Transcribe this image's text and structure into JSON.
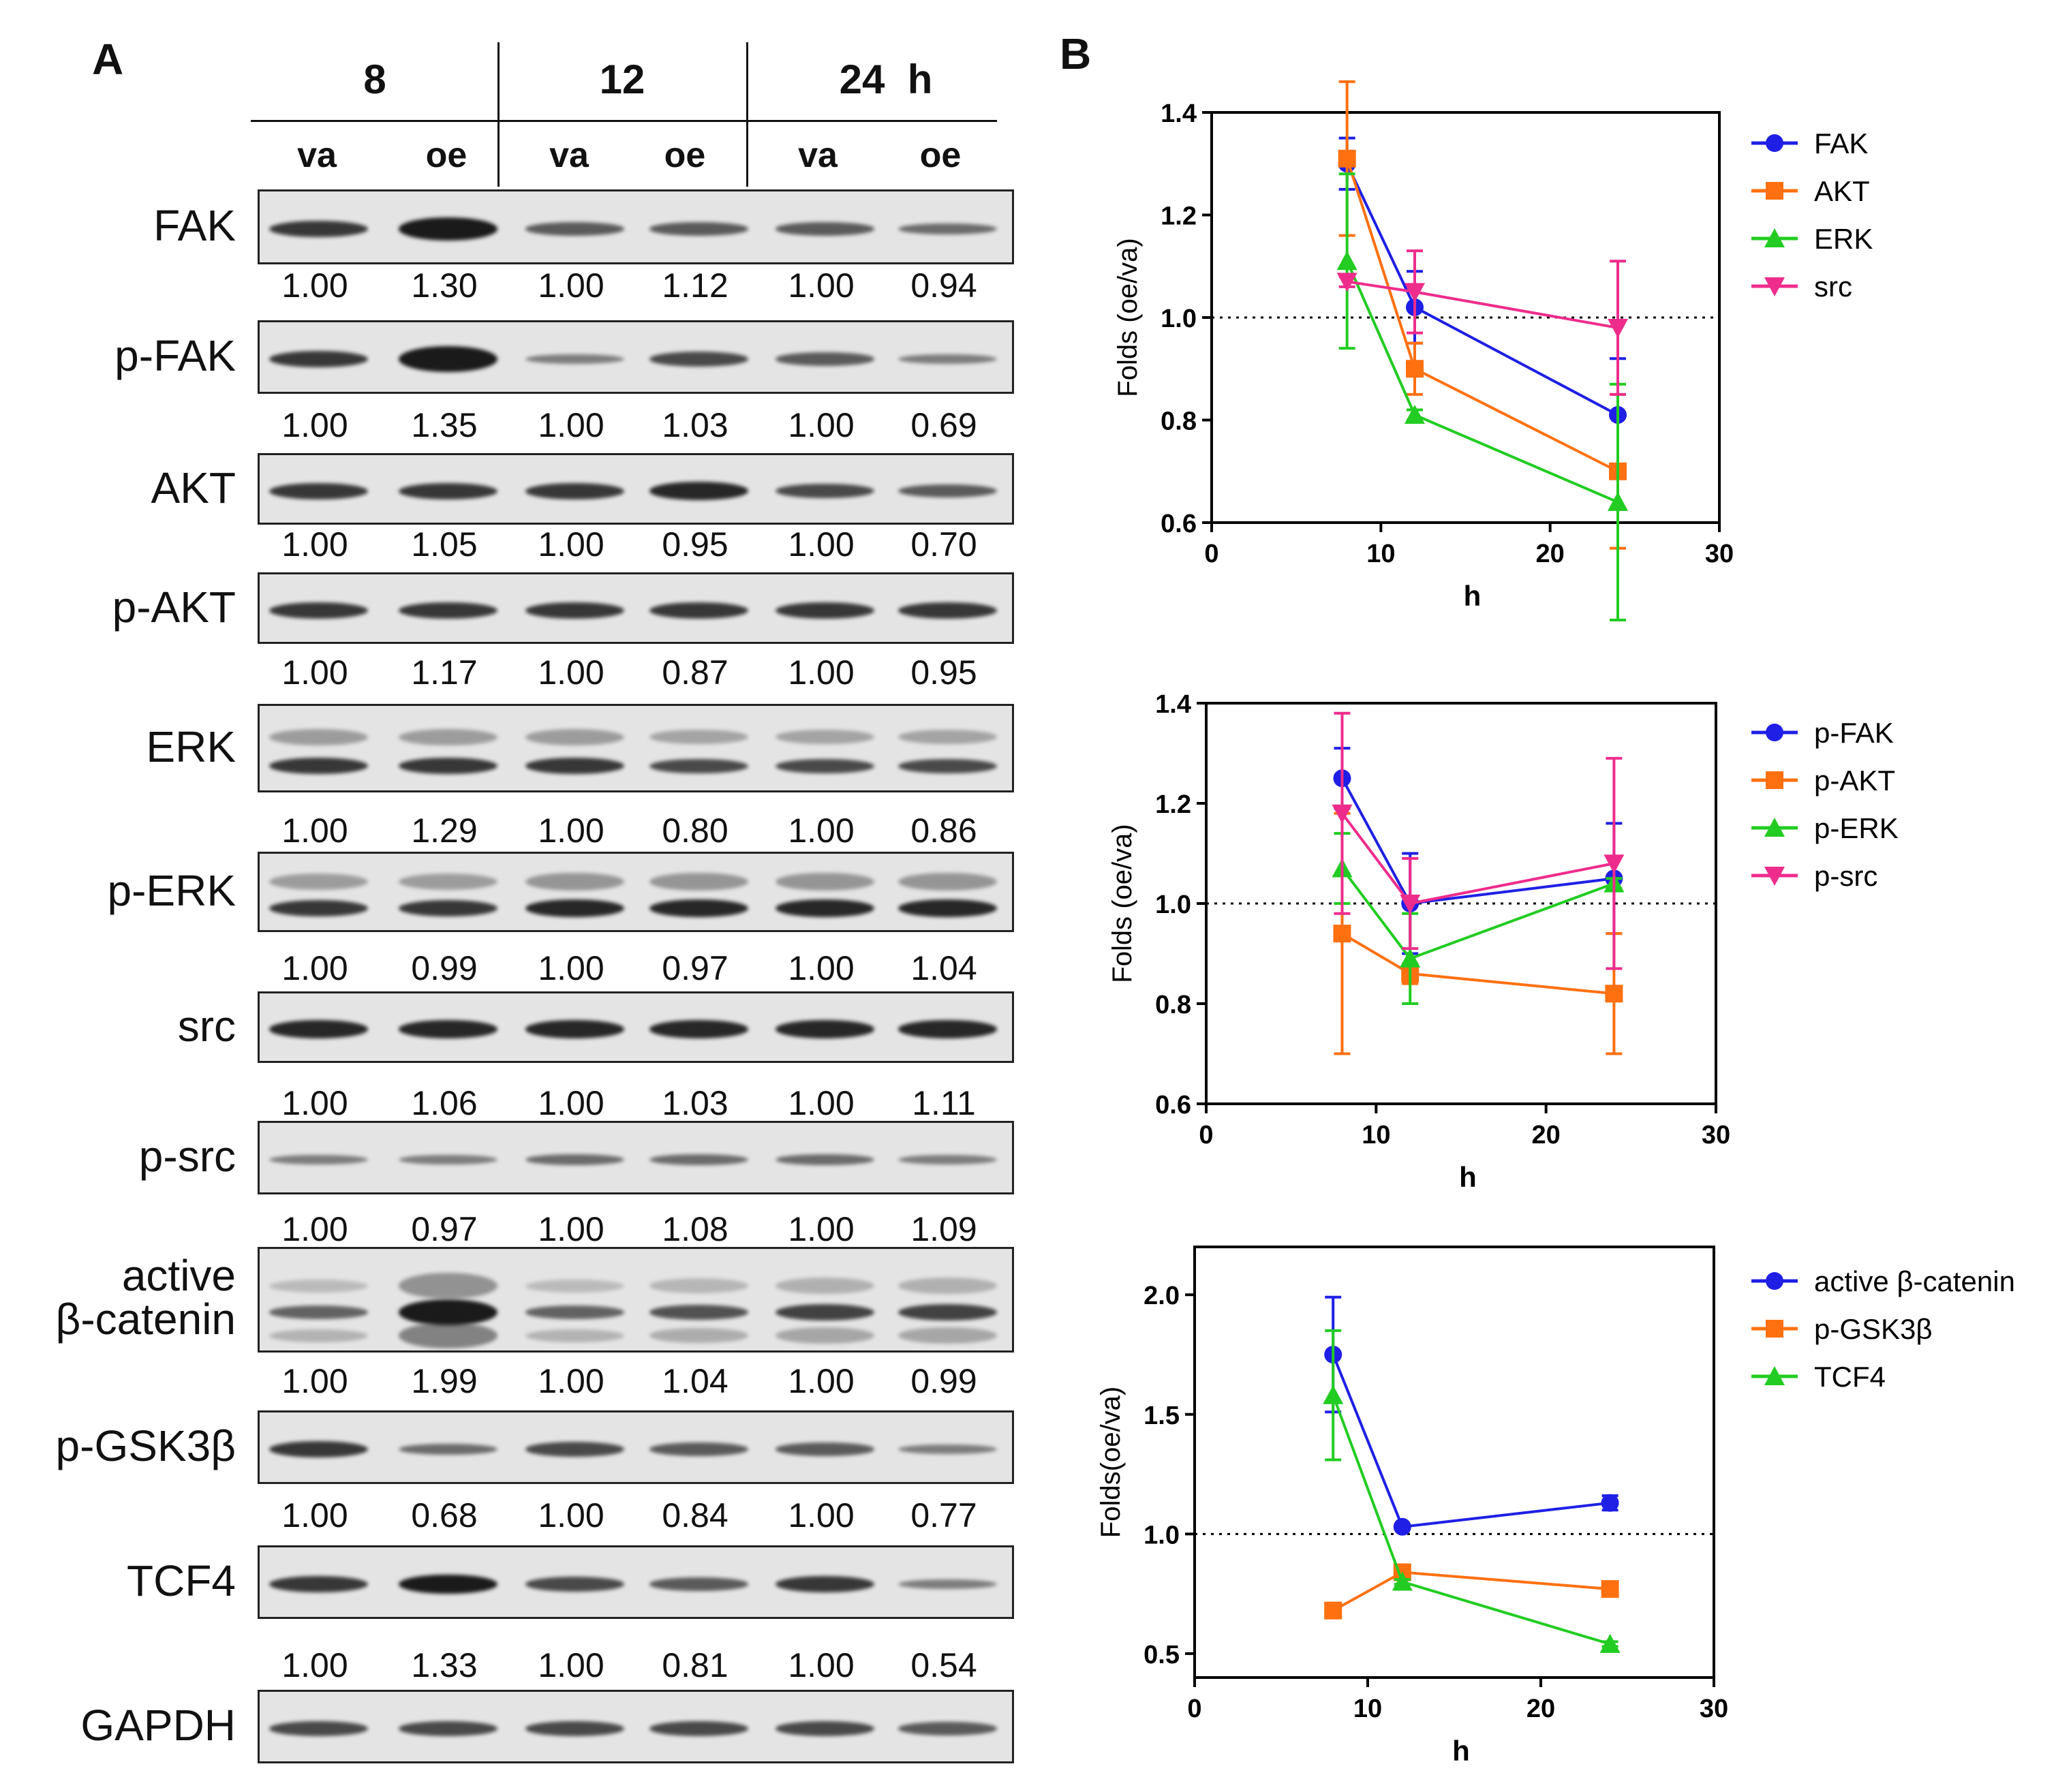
{
  "panel_a": {
    "letter": "A",
    "time_labels": [
      "8",
      "12",
      "24  h"
    ],
    "lane_labels": [
      "va",
      "oe",
      "va",
      "oe",
      "va",
      "oe"
    ],
    "blots": [
      {
        "protein": "FAK",
        "ratios": [
          "1.00",
          "1.30",
          "1.00",
          "1.12",
          "1.00",
          "0.94"
        ]
      },
      {
        "protein": "p-FAK",
        "ratios": [
          "1.00",
          "1.35",
          "1.00",
          "1.03",
          "1.00",
          "0.69"
        ]
      },
      {
        "protein": "AKT",
        "ratios": [
          "1.00",
          "1.05",
          "1.00",
          "0.95",
          "1.00",
          "0.70"
        ]
      },
      {
        "protein": "p-AKT",
        "ratios": [
          "1.00",
          "1.17",
          "1.00",
          "0.87",
          "1.00",
          "0.95"
        ]
      },
      {
        "protein": "ERK",
        "ratios": [
          "1.00",
          "1.29",
          "1.00",
          "0.80",
          "1.00",
          "0.86"
        ]
      },
      {
        "protein": "p-ERK",
        "ratios": [
          "1.00",
          "0.99",
          "1.00",
          "0.97",
          "1.00",
          "1.04"
        ]
      },
      {
        "protein": "src",
        "ratios": [
          "1.00",
          "1.06",
          "1.00",
          "1.03",
          "1.00",
          "1.11"
        ]
      },
      {
        "protein": "p-src",
        "ratios": [
          "1.00",
          "0.97",
          "1.00",
          "1.08",
          "1.00",
          "1.09"
        ]
      },
      {
        "protein": "active\nβ-catenin",
        "ratios": [
          "1.00",
          "1.99",
          "1.00",
          "1.04",
          "1.00",
          "0.99"
        ]
      },
      {
        "protein": "p-GSK3β",
        "ratios": [
          "1.00",
          "0.68",
          "1.00",
          "0.84",
          "1.00",
          "0.77"
        ]
      },
      {
        "protein": "TCF4",
        "ratios": [
          "1.00",
          "1.33",
          "1.00",
          "0.81",
          "1.00",
          "0.54"
        ]
      },
      {
        "protein": "GAPDH",
        "ratios": []
      }
    ]
  },
  "panel_b": {
    "letter": "B"
  },
  "chart_data": [
    {
      "type": "line",
      "xlabel": "h",
      "ylabel": "Folds (oe/va)",
      "xlim": [
        0,
        30
      ],
      "ylim": [
        0.6,
        1.4
      ],
      "xticks": [
        0,
        10,
        20,
        30
      ],
      "yticks": [
        0.6,
        0.8,
        1.0,
        1.2,
        1.4
      ],
      "ytick_labels": [
        "0.6",
        "0.8",
        "1.0",
        "1.2",
        "1.4"
      ],
      "reference_line": 1.0,
      "legend_position": "right",
      "x": [
        8,
        12,
        24
      ],
      "series": [
        {
          "name": "FAK",
          "color": "#1f1fe6",
          "marker": "circle",
          "values": [
            1.3,
            1.02,
            0.81
          ],
          "errors": [
            0.05,
            0.07,
            0.11
          ]
        },
        {
          "name": "AKT",
          "color": "#ff7010",
          "marker": "square",
          "values": [
            1.31,
            0.9,
            0.7
          ],
          "errors": [
            0.15,
            0.05,
            0.15
          ]
        },
        {
          "name": "ERK",
          "color": "#22cc22",
          "marker": "triangle",
          "values": [
            1.11,
            0.81,
            0.64
          ],
          "errors": [
            0.17,
            0.01,
            0.23
          ]
        },
        {
          "name": "src",
          "color": "#ee2c8c",
          "marker": "triangle-down",
          "values": [
            1.07,
            1.05,
            0.98
          ],
          "errors": [
            0.01,
            0.08,
            0.13
          ]
        }
      ]
    },
    {
      "type": "line",
      "xlabel": "h",
      "ylabel": "Folds (oe/va)",
      "xlim": [
        0,
        30
      ],
      "ylim": [
        0.6,
        1.4
      ],
      "xticks": [
        0,
        10,
        20,
        30
      ],
      "yticks": [
        0.6,
        0.8,
        1.0,
        1.2,
        1.4
      ],
      "ytick_labels": [
        "0.6",
        "0.8",
        "1.0",
        "1.2",
        "1.4"
      ],
      "reference_line": 1.0,
      "legend_position": "right",
      "x": [
        8,
        12,
        24
      ],
      "series": [
        {
          "name": "p-FAK",
          "color": "#1f1fe6",
          "marker": "circle",
          "values": [
            1.25,
            1.0,
            1.05
          ],
          "errors": [
            0.06,
            0.1,
            0.11
          ]
        },
        {
          "name": "p-AKT",
          "color": "#ff7010",
          "marker": "square",
          "values": [
            0.94,
            0.86,
            0.82
          ],
          "errors": [
            0.24,
            0.02,
            0.12
          ]
        },
        {
          "name": "p-ERK",
          "color": "#22cc22",
          "marker": "triangle",
          "values": [
            1.07,
            0.89,
            1.04
          ],
          "errors": [
            0.07,
            0.09,
            0.01
          ]
        },
        {
          "name": "p-src",
          "color": "#ee2c8c",
          "marker": "triangle-down",
          "values": [
            1.18,
            1.0,
            1.08
          ],
          "errors": [
            0.2,
            0.09,
            0.21
          ]
        }
      ]
    },
    {
      "type": "line",
      "xlabel": "h",
      "ylabel": "Folds(oe/va)",
      "xlim": [
        0,
        30
      ],
      "ylim": [
        0.4,
        2.2
      ],
      "xticks": [
        0,
        10,
        20,
        30
      ],
      "yticks": [
        0.5,
        1.0,
        1.5,
        2.0
      ],
      "ytick_labels": [
        "0.5",
        "1.0",
        "1.5",
        "2.0"
      ],
      "reference_line": 1.0,
      "legend_position": "right",
      "x": [
        8,
        12,
        24
      ],
      "series": [
        {
          "name": "active β-catenin",
          "color": "#1f1fe6",
          "marker": "circle",
          "values": [
            1.75,
            1.03,
            1.13
          ],
          "errors": [
            0.24,
            0.01,
            0.03
          ]
        },
        {
          "name": "p-GSK3β",
          "color": "#ff7010",
          "marker": "square",
          "values": [
            0.68,
            0.84,
            0.77
          ],
          "errors": [
            0.0,
            0.0,
            0.0
          ]
        },
        {
          "name": "TCF4",
          "color": "#22cc22",
          "marker": "triangle",
          "values": [
            1.58,
            0.8,
            0.54
          ],
          "errors": [
            0.27,
            0.01,
            0.01
          ]
        }
      ]
    }
  ]
}
